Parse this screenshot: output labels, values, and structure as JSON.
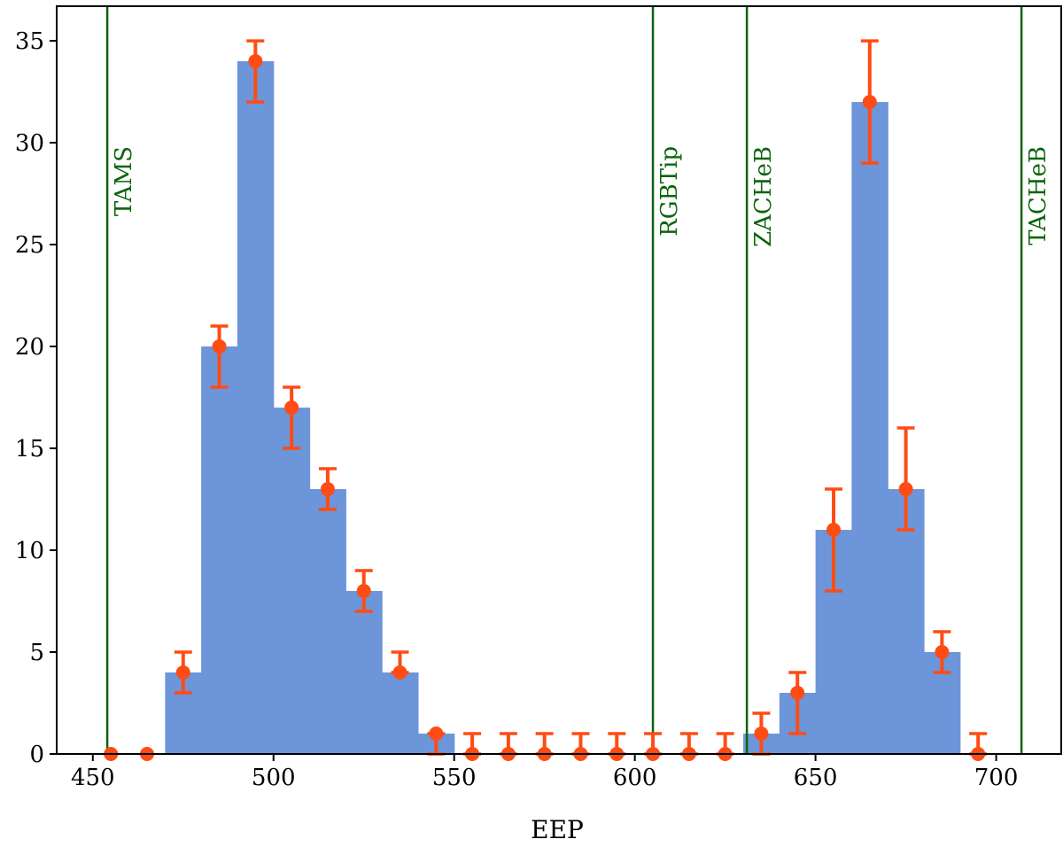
{
  "chart_data": {
    "type": "bar",
    "title": "",
    "xlabel": "EEP",
    "ylabel": "",
    "xlim": [
      440,
      718
    ],
    "ylim": [
      0,
      36.7
    ],
    "x_ticks": [
      450,
      500,
      550,
      600,
      650,
      700
    ],
    "y_ticks": [
      0,
      5,
      10,
      15,
      20,
      25,
      30,
      35
    ],
    "grid": false,
    "bin_width": 10,
    "bins": [
      {
        "left": 450,
        "count": 0
      },
      {
        "left": 460,
        "count": 0
      },
      {
        "left": 470,
        "count": 4
      },
      {
        "left": 480,
        "count": 20
      },
      {
        "left": 490,
        "count": 34
      },
      {
        "left": 500,
        "count": 17
      },
      {
        "left": 510,
        "count": 13
      },
      {
        "left": 520,
        "count": 8
      },
      {
        "left": 530,
        "count": 4
      },
      {
        "left": 540,
        "count": 1
      },
      {
        "left": 550,
        "count": 0
      },
      {
        "left": 560,
        "count": 0
      },
      {
        "left": 570,
        "count": 0
      },
      {
        "left": 580,
        "count": 0
      },
      {
        "left": 590,
        "count": 0
      },
      {
        "left": 600,
        "count": 0
      },
      {
        "left": 610,
        "count": 0
      },
      {
        "left": 620,
        "count": 0
      },
      {
        "left": 630,
        "count": 1
      },
      {
        "left": 640,
        "count": 3
      },
      {
        "left": 650,
        "count": 11
      },
      {
        "left": 660,
        "count": 32
      },
      {
        "left": 670,
        "count": 13
      },
      {
        "left": 680,
        "count": 5
      },
      {
        "left": 690,
        "count": 0
      }
    ],
    "points": [
      {
        "x": 455,
        "y": 0,
        "low": 0,
        "high": 0
      },
      {
        "x": 465,
        "y": 0,
        "low": 0,
        "high": 0
      },
      {
        "x": 475,
        "y": 4,
        "low": 3,
        "high": 5
      },
      {
        "x": 485,
        "y": 20,
        "low": 18,
        "high": 21
      },
      {
        "x": 495,
        "y": 34,
        "low": 32,
        "high": 35
      },
      {
        "x": 505,
        "y": 17,
        "low": 15,
        "high": 18
      },
      {
        "x": 515,
        "y": 13,
        "low": 12,
        "high": 14
      },
      {
        "x": 525,
        "y": 8,
        "low": 7,
        "high": 9
      },
      {
        "x": 535,
        "y": 4,
        "low": 4,
        "high": 5
      },
      {
        "x": 545,
        "y": 1,
        "low": 0,
        "high": 1
      },
      {
        "x": 555,
        "y": 0,
        "low": 0,
        "high": 1
      },
      {
        "x": 565,
        "y": 0,
        "low": 0,
        "high": 1
      },
      {
        "x": 575,
        "y": 0,
        "low": 0,
        "high": 1
      },
      {
        "x": 585,
        "y": 0,
        "low": 0,
        "high": 1
      },
      {
        "x": 595,
        "y": 0,
        "low": 0,
        "high": 1
      },
      {
        "x": 605,
        "y": 0,
        "low": 0,
        "high": 1
      },
      {
        "x": 615,
        "y": 0,
        "low": 0,
        "high": 1
      },
      {
        "x": 625,
        "y": 0,
        "low": 0,
        "high": 1
      },
      {
        "x": 635,
        "y": 1,
        "low": 0,
        "high": 2
      },
      {
        "x": 645,
        "y": 3,
        "low": 1,
        "high": 4
      },
      {
        "x": 655,
        "y": 11,
        "low": 8,
        "high": 13
      },
      {
        "x": 665,
        "y": 32,
        "low": 29,
        "high": 35
      },
      {
        "x": 675,
        "y": 13,
        "low": 11,
        "high": 16
      },
      {
        "x": 685,
        "y": 5,
        "low": 4,
        "high": 6
      },
      {
        "x": 695,
        "y": 0,
        "low": 0,
        "high": 1
      }
    ],
    "markers": [
      {
        "x": 454,
        "label": "TAMS"
      },
      {
        "x": 605,
        "label": "RGBTip"
      },
      {
        "x": 631,
        "label": "ZACHeB"
      },
      {
        "x": 707,
        "label": "TACHeB"
      }
    ],
    "colors": {
      "bars": "#6d95d9",
      "points": "#ff4c14",
      "markers": "#0b640b"
    }
  }
}
